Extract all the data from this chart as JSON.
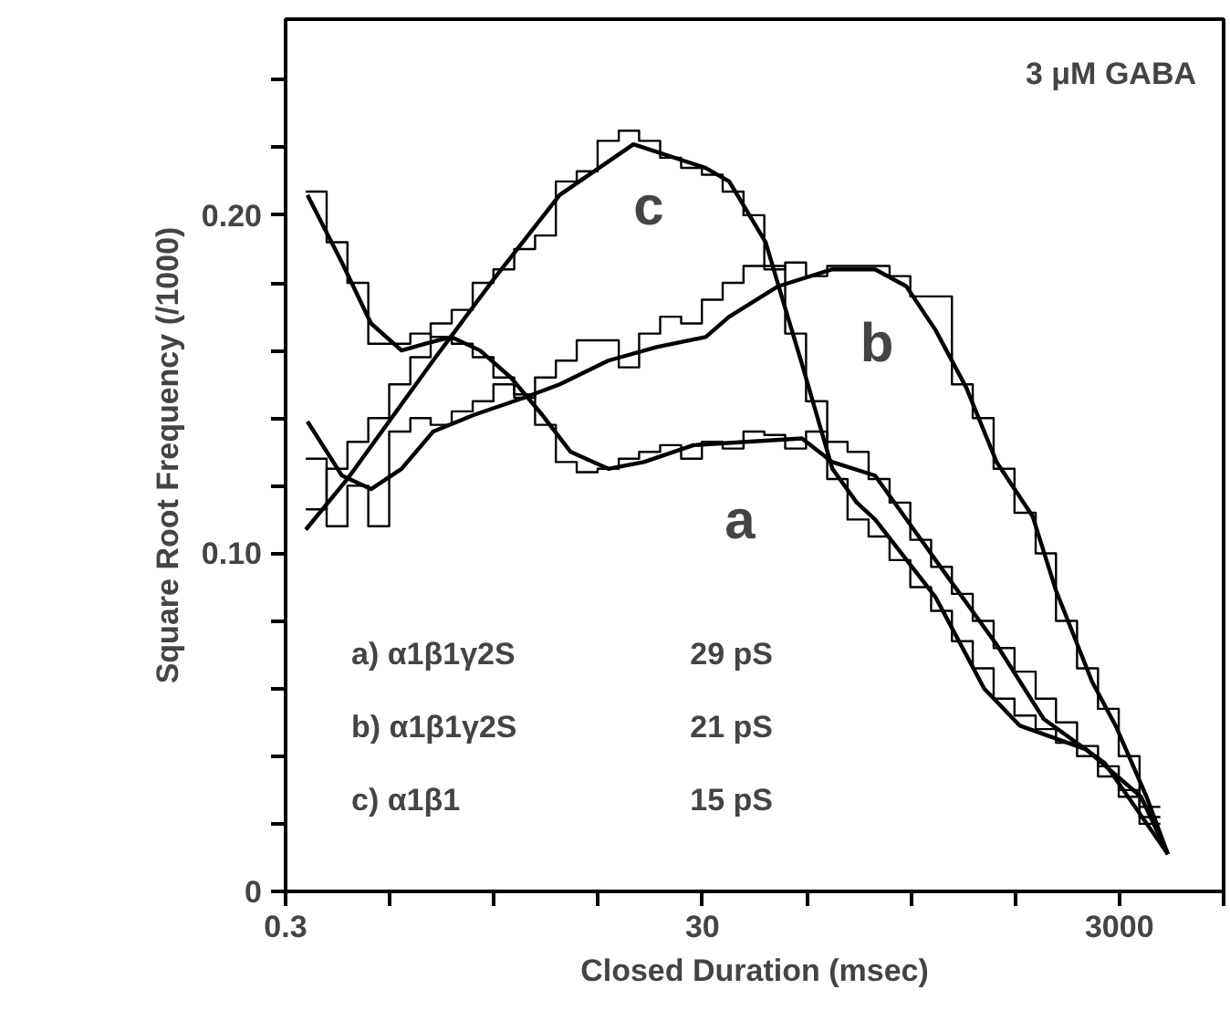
{
  "chart_data": {
    "type": "line",
    "xlabel": "Closed Duration (msec)",
    "ylabel": "Square Root Frequency (/1000)",
    "log": "x",
    "grid": false,
    "xlim": [
      0.3,
      9490
    ],
    "xticks": [
      0.3,
      {
        "value": 0.949,
        "label": null
      },
      {
        "value": 3,
        "label": null
      },
      {
        "value": 9.49,
        "label": null
      },
      30,
      {
        "value": 94.9,
        "label": null
      },
      {
        "value": 300,
        "label": null
      },
      {
        "value": 949,
        "label": null
      },
      3000,
      {
        "value": 9490,
        "label": null
      }
    ],
    "ylim": [
      0,
      0.258
    ],
    "yticks": [
      0,
      {
        "value": 0.02,
        "label": null
      },
      {
        "value": 0.04,
        "label": null
      },
      {
        "value": 0.06,
        "label": null
      },
      {
        "value": 0.08,
        "label": null
      },
      {
        "value": 0.1,
        "label": "0.10"
      },
      {
        "value": 0.12,
        "label": null
      },
      {
        "value": 0.14,
        "label": null
      },
      {
        "value": 0.16,
        "label": null
      },
      {
        "value": 0.18,
        "label": null
      },
      {
        "value": 0.2,
        "label": "0.20"
      },
      {
        "value": 0.22,
        "label": null
      },
      {
        "value": 0.24,
        "label": null
      }
    ],
    "series": [
      {
        "type": "step",
        "color": "#000000",
        "x": [
          0.375,
          0.472,
          0.594,
          0.748,
          0.942,
          1.19,
          1.49,
          1.88,
          2.37,
          2.98,
          3.75,
          4.72,
          5.94,
          7.48,
          9.42,
          11.9,
          14.9,
          18.8,
          23.7,
          29.8,
          37.5,
          47.2,
          59.4,
          74.8,
          94.2,
          119,
          149,
          188,
          237,
          298,
          375,
          472,
          594,
          748,
          942,
          1190,
          1490,
          1880,
          2370,
          2980,
          3750,
          4720
        ],
        "values": [
          0.207,
          0.192,
          0.18,
          0.162,
          0.162,
          0.165,
          0.164,
          0.162,
          0.158,
          0.152,
          0.147,
          0.138,
          0.127,
          0.124,
          0.125,
          0.128,
          0.13,
          0.132,
          0.128,
          0.133,
          0.131,
          0.136,
          0.135,
          0.131,
          0.136,
          0.133,
          0.13,
          0.122,
          0.115,
          0.104,
          0.096,
          0.088,
          0.08,
          0.072,
          0.065,
          0.057,
          0.05,
          0.043,
          0.037,
          0.03,
          0.022,
          0.022
        ]
      },
      {
        "type": "step",
        "color": "#000000",
        "x": [
          0.375,
          0.472,
          0.594,
          0.748,
          0.942,
          1.19,
          1.49,
          1.88,
          2.37,
          2.98,
          3.75,
          4.72,
          5.94,
          7.48,
          9.42,
          11.9,
          14.9,
          18.8,
          23.7,
          29.8,
          37.5,
          47.2,
          59.4,
          74.8,
          94.2,
          119,
          149,
          188,
          237,
          298,
          375,
          472,
          594,
          748,
          942,
          1190,
          1490,
          1880,
          2370,
          2980,
          3750,
          4720
        ],
        "values": [
          0.128,
          0.108,
          0.12,
          0.108,
          0.136,
          0.14,
          0.138,
          0.142,
          0.145,
          0.15,
          0.146,
          0.152,
          0.157,
          0.163,
          0.163,
          0.155,
          0.165,
          0.17,
          0.168,
          0.175,
          0.18,
          0.185,
          0.184,
          0.186,
          0.182,
          0.185,
          0.185,
          0.185,
          0.182,
          0.176,
          0.176,
          0.15,
          0.14,
          0.125,
          0.112,
          0.1,
          0.08,
          0.066,
          0.054,
          0.04,
          0.025,
          0.025
        ]
      },
      {
        "type": "step",
        "color": "#000000",
        "x": [
          0.375,
          0.472,
          0.594,
          0.748,
          0.942,
          1.19,
          1.49,
          1.88,
          2.37,
          2.98,
          3.75,
          4.72,
          5.94,
          7.48,
          9.42,
          11.9,
          14.9,
          18.8,
          23.7,
          29.8,
          37.5,
          47.2,
          59.4,
          74.8,
          94.2,
          119,
          149,
          188,
          237,
          298,
          375,
          472,
          594,
          748,
          942,
          1190,
          1490,
          1880,
          2370,
          2980,
          3750,
          4720
        ],
        "values": [
          0.113,
          0.125,
          0.133,
          0.14,
          0.15,
          0.158,
          0.168,
          0.172,
          0.18,
          0.184,
          0.19,
          0.194,
          0.21,
          0.213,
          0.222,
          0.225,
          0.222,
          0.217,
          0.214,
          0.212,
          0.207,
          0.2,
          0.185,
          0.165,
          0.145,
          0.122,
          0.11,
          0.105,
          0.098,
          0.09,
          0.083,
          0.074,
          0.066,
          0.057,
          0.052,
          0.048,
          0.044,
          0.04,
          0.034,
          0.028,
          0.02,
          0.02
        ]
      },
      {
        "name": "a",
        "color": "#000000",
        "x": [
          0.382,
          0.559,
          0.771,
          1.08,
          1.41,
          1.87,
          2.57,
          3.61,
          5.1,
          7.0,
          10.6,
          15.7,
          27.2,
          90,
          126,
          202,
          394,
          773,
          1300,
          2550,
          5130
        ],
        "values": [
          0.206,
          0.186,
          0.168,
          0.16,
          0.162,
          0.164,
          0.16,
          0.152,
          0.141,
          0.13,
          0.125,
          0.127,
          0.132,
          0.134,
          0.127,
          0.123,
          0.098,
          0.073,
          0.051,
          0.038,
          0.011
        ]
      },
      {
        "name": "b",
        "color": "#000000",
        "x": [
          0.382,
          0.559,
          0.771,
          1.08,
          1.53,
          2.42,
          4.17,
          6.2,
          10.6,
          18.1,
          31.1,
          40.3,
          69.3,
          126,
          202,
          285,
          394,
          553,
          773,
          1150,
          1490,
          2220,
          2880,
          4050,
          5130
        ],
        "values": [
          0.139,
          0.123,
          0.119,
          0.125,
          0.136,
          0.141,
          0.146,
          0.15,
          0.157,
          0.161,
          0.164,
          0.17,
          0.179,
          0.184,
          0.184,
          0.179,
          0.166,
          0.149,
          0.127,
          0.111,
          0.089,
          0.062,
          0.049,
          0.028,
          0.011
        ]
      },
      {
        "name": "c",
        "color": "#000000",
        "x": [
          0.375,
          0.594,
          1.53,
          2.98,
          6.2,
          14.0,
          31.1,
          40.3,
          60.3,
          73.6,
          90,
          126,
          165,
          202,
          394,
          674,
          1000,
          2080,
          3810,
          5130
        ],
        "values": [
          0.107,
          0.122,
          0.157,
          0.181,
          0.206,
          0.221,
          0.214,
          0.21,
          0.192,
          0.174,
          0.156,
          0.125,
          0.115,
          0.11,
          0.087,
          0.06,
          0.049,
          0.042,
          0.028,
          0.011
        ]
      }
    ],
    "annotations": [
      "3 μM GABA",
      "a) α1β1γ2S  29 pS",
      "b) α1β1γ2S  21 pS",
      "c) α1β1  15 pS"
    ]
  }
}
